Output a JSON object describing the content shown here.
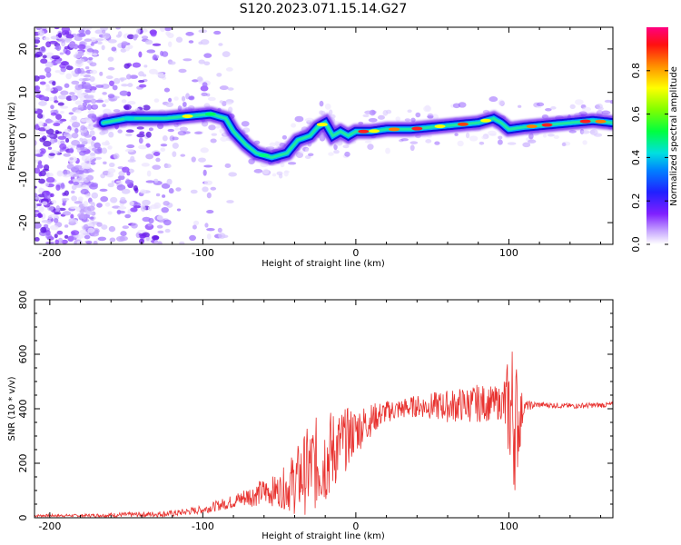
{
  "title": "S120.2023.071.15.14.G27",
  "colors": {
    "snr_line": "#e8322f",
    "axis": "#000000",
    "spectrum_background_scatter": "#8a3cff",
    "colormap": [
      "#e8e0ff",
      "#b080ff",
      "#7020e0",
      "#3030ff",
      "#0060ff",
      "#00d0e0",
      "#00ff60",
      "#a0ff00",
      "#ffff00",
      "#ff8000",
      "#ff0000",
      "#ff0080"
    ]
  },
  "chart_data": [
    {
      "type": "heatmap",
      "name": "spectrogram",
      "xlabel": "Height of straight line (km)",
      "ylabel": "Frequency (Hz)",
      "xlim": [
        -210,
        168
      ],
      "ylim": [
        -25,
        25
      ],
      "x_ticks": [
        -200,
        -100,
        0,
        100
      ],
      "y_ticks": [
        -20,
        -10,
        0,
        10,
        20
      ],
      "grid": false,
      "colorbar": {
        "label": "Normalized spectral amplitude",
        "range": [
          0.0,
          1.0
        ],
        "ticks": [
          "0.0",
          "0.2",
          "0.4",
          "0.6",
          "0.8"
        ]
      },
      "ridge": {
        "x": [
          -165,
          -150,
          -140,
          -125,
          -110,
          -95,
          -85,
          -80,
          -72,
          -65,
          -55,
          -45,
          -38,
          -30,
          -25,
          -20,
          -15,
          -10,
          -5,
          0,
          10,
          20,
          35,
          50,
          65,
          80,
          90,
          95,
          100,
          110,
          125,
          140,
          155,
          168
        ],
        "y": [
          3,
          4,
          4,
          4,
          4.5,
          5,
          4,
          1,
          -2,
          -4,
          -5,
          -4,
          -1,
          0,
          2,
          3,
          0,
          1,
          0,
          1,
          1,
          1.5,
          1.5,
          2,
          2.5,
          3,
          4,
          3,
          1.5,
          2,
          2.5,
          3,
          3.5,
          3
        ]
      }
    },
    {
      "type": "line",
      "name": "snr",
      "xlabel": "Height of straight line (km)",
      "ylabel": "SNR (10 * v/v)",
      "xlim": [
        -210,
        168
      ],
      "ylim": [
        0,
        800
      ],
      "x_ticks": [
        -200,
        -100,
        0,
        100
      ],
      "y_ticks": [
        0,
        200,
        400,
        600,
        800
      ],
      "grid": false,
      "envelope": {
        "x": [
          -210,
          -180,
          -160,
          -140,
          -120,
          -100,
          -90,
          -80,
          -70,
          -60,
          -50,
          -40,
          -30,
          -20,
          -10,
          0,
          10,
          20,
          30,
          40,
          60,
          80,
          95,
          100,
          103,
          106,
          110,
          120,
          140,
          168
        ],
        "mid": [
          8,
          8,
          10,
          12,
          15,
          30,
          45,
          60,
          80,
          95,
          100,
          130,
          180,
          220,
          270,
          320,
          360,
          390,
          400,
          410,
          410,
          420,
          420,
          400,
          380,
          350,
          410,
          415,
          410,
          415
        ],
        "amp": [
          5,
          5,
          8,
          10,
          12,
          15,
          20,
          25,
          40,
          50,
          60,
          120,
          170,
          180,
          130,
          90,
          60,
          40,
          40,
          40,
          60,
          70,
          60,
          200,
          320,
          180,
          20,
          10,
          10,
          10
        ]
      }
    }
  ]
}
